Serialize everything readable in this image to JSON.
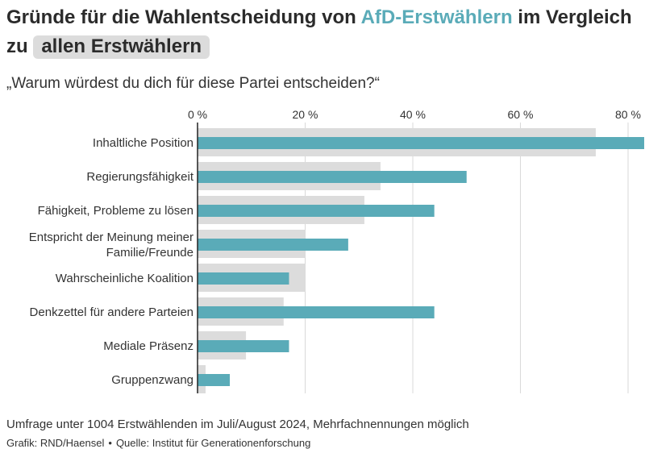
{
  "title": {
    "prefix": "Gründe für die Wahlentscheidung von ",
    "highlight_afd": "AfD-Erstwählern",
    "middle": " im Vergleich zu ",
    "highlight_all": "allen Erstwählern"
  },
  "question": "„Warum würdest du dich für diese Partei entscheiden?“",
  "footnote": "Umfrage unter 1004 Erstwählenden im Juli/August 2024, Mehrfachnennungen möglich",
  "credits": {
    "grafik": "Grafik: RND/Haensel",
    "separator": "•",
    "quelle": "Quelle: Institut für Generationenforschung"
  },
  "colors": {
    "afd": "#5aabb8",
    "all": "#dcdcdc",
    "grid": "#d9d9d9",
    "axis": "#222222"
  },
  "chart_data": {
    "type": "bar",
    "orientation": "horizontal",
    "x_ticks": [
      "0 %",
      "20 %",
      "40 %",
      "60 %",
      "80 %"
    ],
    "xlim": [
      0,
      83
    ],
    "grid": true,
    "categories": [
      "Inhaltliche Position",
      "Regierungsfähigkeit",
      "Fähigkeit, Probleme zu lösen",
      "Entspricht der Meinung meiner\nFamilie/Freunde",
      "Wahrscheinliche Koalition",
      "Denkzettel für andere Parteien",
      "Mediale Präsenz",
      "Gruppenzwang"
    ],
    "series": [
      {
        "name": "allen Erstwählern",
        "values": [
          74,
          34,
          31,
          20,
          20,
          16,
          9,
          1.5
        ]
      },
      {
        "name": "AfD-Erstwählern",
        "values": [
          83,
          50,
          44,
          28,
          17,
          44,
          17,
          6
        ]
      }
    ]
  }
}
